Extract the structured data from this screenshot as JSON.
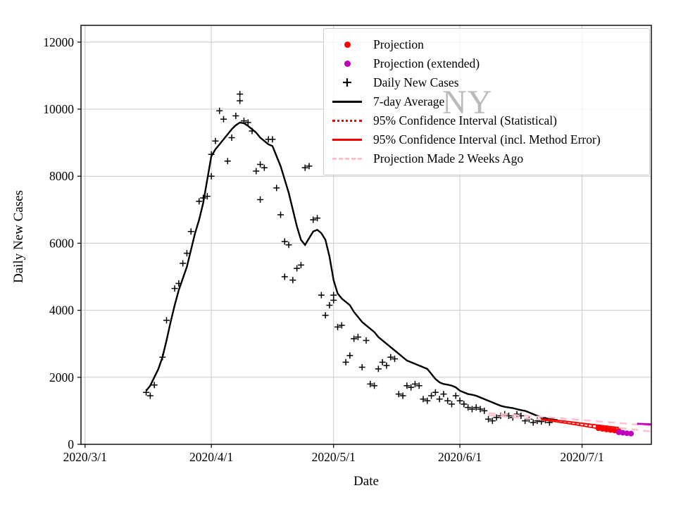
{
  "figure": {
    "watermark": "NY"
  },
  "chart_data": {
    "type": "line",
    "title": "",
    "xlabel": "Date",
    "ylabel": "Daily New Cases",
    "grid": true,
    "legend_position": "upper right",
    "x_axis": {
      "unit": "days since 2020/3/1",
      "range": [
        -1,
        139
      ],
      "ticks": [
        {
          "day": 0,
          "label": "2020/3/1"
        },
        {
          "day": 31,
          "label": "2020/4/1"
        },
        {
          "day": 61,
          "label": "2020/5/1"
        },
        {
          "day": 92,
          "label": "2020/6/1"
        },
        {
          "day": 122,
          "label": "2020/7/1"
        }
      ]
    },
    "y_axis": {
      "range": [
        0,
        12500
      ],
      "ticks": [
        0,
        2000,
        4000,
        6000,
        8000,
        10000,
        12000
      ]
    },
    "colors": {
      "black": "#000000",
      "red": "#ff0000",
      "magenta": "#bf00bf",
      "pink": "#ffc0cb",
      "grid": "#c8c8c8",
      "watermark": "#828282"
    },
    "legend": [
      {
        "label": "Projection",
        "marker": "dot",
        "color": "#ff0000"
      },
      {
        "label": "Projection (extended)",
        "marker": "dot",
        "color": "#bf00bf"
      },
      {
        "label": "Daily New Cases",
        "marker": "plus",
        "color": "#000000"
      },
      {
        "label": "7-day Average",
        "marker": "line",
        "color": "#000000"
      },
      {
        "label": "95% Confidence Interval (Statistical)",
        "marker": "dotted",
        "color": "#ff0000"
      },
      {
        "label": "95% Confidence Interval (incl. Method Error)",
        "marker": "solidline",
        "color": "#ff0000"
      },
      {
        "label": "Projection Made 2 Weeks Ago",
        "marker": "dashed",
        "color": "#ffc0cb"
      }
    ],
    "series": [
      {
        "name": "Daily New Cases",
        "type": "scatter",
        "marker": "plus",
        "color": "#000000",
        "points": [
          [
            15,
            1550
          ],
          [
            16,
            1450
          ],
          [
            17,
            1770
          ],
          [
            19,
            2600
          ],
          [
            20,
            3700
          ],
          [
            22,
            4650
          ],
          [
            23,
            4800
          ],
          [
            24,
            5400
          ],
          [
            25,
            5700
          ],
          [
            26,
            6350
          ],
          [
            28,
            7250
          ],
          [
            29,
            7350
          ],
          [
            30,
            7400
          ],
          [
            31,
            8000
          ],
          [
            31,
            8650
          ],
          [
            32,
            9050
          ],
          [
            33,
            9950
          ],
          [
            34,
            9700
          ],
          [
            35,
            8450
          ],
          [
            36,
            9150
          ],
          [
            37,
            9800
          ],
          [
            38,
            10450
          ],
          [
            38,
            10250
          ],
          [
            39,
            9650
          ],
          [
            40,
            9600
          ],
          [
            41,
            9350
          ],
          [
            42,
            8150
          ],
          [
            43,
            7300
          ],
          [
            43,
            8350
          ],
          [
            44,
            8250
          ],
          [
            45,
            9100
          ],
          [
            46,
            9100
          ],
          [
            47,
            7650
          ],
          [
            48,
            6850
          ],
          [
            49,
            5000
          ],
          [
            49,
            6050
          ],
          [
            50,
            5950
          ],
          [
            51,
            4900
          ],
          [
            52,
            5250
          ],
          [
            53,
            5350
          ],
          [
            54,
            8250
          ],
          [
            55,
            8300
          ],
          [
            56,
            6700
          ],
          [
            57,
            6750
          ],
          [
            58,
            4450
          ],
          [
            59,
            3850
          ],
          [
            60,
            4150
          ],
          [
            61,
            4300
          ],
          [
            61,
            4450
          ],
          [
            62,
            3500
          ],
          [
            63,
            3550
          ],
          [
            64,
            2450
          ],
          [
            65,
            2650
          ],
          [
            66,
            3150
          ],
          [
            67,
            3200
          ],
          [
            68,
            2300
          ],
          [
            69,
            3100
          ],
          [
            70,
            1800
          ],
          [
            71,
            1750
          ],
          [
            72,
            2250
          ],
          [
            73,
            2450
          ],
          [
            74,
            2350
          ],
          [
            75,
            2600
          ],
          [
            76,
            2550
          ],
          [
            77,
            1500
          ],
          [
            78,
            1450
          ],
          [
            79,
            1750
          ],
          [
            80,
            1700
          ],
          [
            81,
            1800
          ],
          [
            82,
            1750
          ],
          [
            83,
            1350
          ],
          [
            84,
            1300
          ],
          [
            85,
            1450
          ],
          [
            86,
            1550
          ],
          [
            87,
            1350
          ],
          [
            88,
            1500
          ],
          [
            89,
            1300
          ],
          [
            90,
            1200
          ],
          [
            91,
            1450
          ],
          [
            92,
            1300
          ],
          [
            93,
            1200
          ],
          [
            94,
            1100
          ],
          [
            95,
            1050
          ],
          [
            96,
            1100
          ],
          [
            97,
            1050
          ],
          [
            98,
            1000
          ],
          [
            99,
            750
          ],
          [
            100,
            700
          ],
          [
            101,
            800
          ],
          [
            102,
            850
          ],
          [
            103,
            900
          ],
          [
            104,
            850
          ],
          [
            105,
            800
          ],
          [
            106,
            900
          ],
          [
            107,
            850
          ],
          [
            108,
            700
          ],
          [
            109,
            750
          ],
          [
            110,
            650
          ],
          [
            111,
            700
          ],
          [
            112,
            680
          ],
          [
            113,
            720
          ],
          [
            114,
            650
          ]
        ]
      },
      {
        "name": "7-day Average",
        "type": "line",
        "style": "solid",
        "color": "#000000",
        "width": 2.4,
        "points": [
          [
            15,
            1600
          ],
          [
            16,
            1750
          ],
          [
            17,
            2000
          ],
          [
            18,
            2250
          ],
          [
            19,
            2600
          ],
          [
            20,
            3100
          ],
          [
            21,
            3650
          ],
          [
            22,
            4150
          ],
          [
            23,
            4600
          ],
          [
            24,
            4950
          ],
          [
            25,
            5300
          ],
          [
            26,
            5800
          ],
          [
            27,
            6300
          ],
          [
            28,
            6700
          ],
          [
            29,
            7200
          ],
          [
            30,
            7900
          ],
          [
            31,
            8600
          ],
          [
            32,
            8800
          ],
          [
            33,
            8950
          ],
          [
            34,
            9100
          ],
          [
            35,
            9250
          ],
          [
            36,
            9400
          ],
          [
            37,
            9520
          ],
          [
            38,
            9600
          ],
          [
            39,
            9580
          ],
          [
            40,
            9500
          ],
          [
            41,
            9400
          ],
          [
            42,
            9300
          ],
          [
            43,
            9150
          ],
          [
            44,
            9050
          ],
          [
            45,
            8950
          ],
          [
            46,
            8900
          ],
          [
            47,
            8600
          ],
          [
            48,
            8300
          ],
          [
            49,
            7900
          ],
          [
            50,
            7500
          ],
          [
            51,
            7000
          ],
          [
            52,
            6500
          ],
          [
            53,
            6100
          ],
          [
            54,
            5950
          ],
          [
            55,
            6150
          ],
          [
            56,
            6350
          ],
          [
            57,
            6400
          ],
          [
            58,
            6300
          ],
          [
            59,
            6100
          ],
          [
            60,
            5600
          ],
          [
            61,
            4900
          ],
          [
            62,
            4500
          ],
          [
            63,
            4350
          ],
          [
            64,
            4250
          ],
          [
            65,
            4150
          ],
          [
            66,
            3950
          ],
          [
            67,
            3800
          ],
          [
            68,
            3650
          ],
          [
            69,
            3550
          ],
          [
            70,
            3450
          ],
          [
            71,
            3350
          ],
          [
            72,
            3200
          ],
          [
            73,
            3100
          ],
          [
            74,
            3000
          ],
          [
            75,
            2900
          ],
          [
            76,
            2800
          ],
          [
            77,
            2700
          ],
          [
            78,
            2600
          ],
          [
            79,
            2500
          ],
          [
            80,
            2450
          ],
          [
            81,
            2400
          ],
          [
            82,
            2350
          ],
          [
            83,
            2300
          ],
          [
            84,
            2250
          ],
          [
            85,
            2100
          ],
          [
            86,
            1950
          ],
          [
            87,
            1850
          ],
          [
            88,
            1800
          ],
          [
            89,
            1780
          ],
          [
            90,
            1750
          ],
          [
            91,
            1700
          ],
          [
            92,
            1600
          ],
          [
            93,
            1550
          ],
          [
            94,
            1500
          ],
          [
            95,
            1480
          ],
          [
            96,
            1450
          ],
          [
            97,
            1400
          ],
          [
            98,
            1350
          ],
          [
            99,
            1300
          ],
          [
            100,
            1250
          ],
          [
            101,
            1200
          ],
          [
            102,
            1150
          ],
          [
            103,
            1120
          ],
          [
            104,
            1100
          ],
          [
            105,
            1080
          ],
          [
            106,
            1050
          ],
          [
            107,
            1020
          ],
          [
            108,
            1000
          ],
          [
            109,
            950
          ],
          [
            110,
            900
          ],
          [
            111,
            850
          ],
          [
            112,
            800
          ],
          [
            113,
            780
          ],
          [
            114,
            760
          ],
          [
            115,
            740
          ],
          [
            116,
            720
          ]
        ]
      },
      {
        "name": "Projection Made 2 Weeks Ago",
        "type": "band",
        "style": "dashed",
        "color": "#ffc0cb",
        "width": 2.4,
        "upper": [
          [
            99,
            930
          ],
          [
            106,
            870
          ],
          [
            113,
            810
          ],
          [
            120,
            745
          ],
          [
            127,
            675
          ],
          [
            134,
            605
          ],
          [
            139,
            555
          ]
        ],
        "lower": [
          [
            99,
            870
          ],
          [
            106,
            800
          ],
          [
            113,
            725
          ],
          [
            120,
            640
          ],
          [
            127,
            545
          ],
          [
            134,
            450
          ],
          [
            139,
            380
          ]
        ]
      },
      {
        "name": "95% Confidence Interval (incl. Method Error)",
        "type": "band",
        "style": "solid",
        "color": "#ff0000",
        "width": 1.8,
        "upper": [
          [
            112,
            760
          ],
          [
            118,
            690
          ],
          [
            124,
            600
          ],
          [
            131,
            500
          ]
        ],
        "lower": [
          [
            112,
            735
          ],
          [
            118,
            630
          ],
          [
            124,
            510
          ],
          [
            131,
            360
          ]
        ]
      },
      {
        "name": "95% Confidence Interval (Statistical)",
        "type": "band",
        "style": "dotted",
        "color": "#ff0000",
        "width": 1.8,
        "upper": [
          [
            112,
            752
          ],
          [
            118,
            672
          ],
          [
            124,
            572
          ],
          [
            131,
            452
          ]
        ],
        "lower": [
          [
            112,
            742
          ],
          [
            118,
            648
          ],
          [
            124,
            538
          ],
          [
            131,
            408
          ]
        ]
      },
      {
        "name": "Projection",
        "type": "scatter",
        "marker": "dot",
        "color": "#ff0000",
        "points": [
          [
            126,
            480
          ],
          [
            127,
            462
          ],
          [
            128,
            444
          ],
          [
            129,
            427
          ],
          [
            130,
            411
          ],
          [
            131,
            396
          ]
        ]
      },
      {
        "name": "Projection (extended)",
        "type": "scatter",
        "marker": "dot",
        "color": "#bf00bf",
        "points": [
          [
            131,
            360
          ],
          [
            132,
            345
          ],
          [
            133,
            332
          ],
          [
            134,
            320
          ]
        ]
      },
      {
        "name": "Projection (extended) tail",
        "type": "line",
        "style": "solid",
        "color": "#bf00bf",
        "width": 2.8,
        "points": [
          [
            135.5,
            615
          ],
          [
            139,
            595
          ]
        ]
      }
    ]
  }
}
